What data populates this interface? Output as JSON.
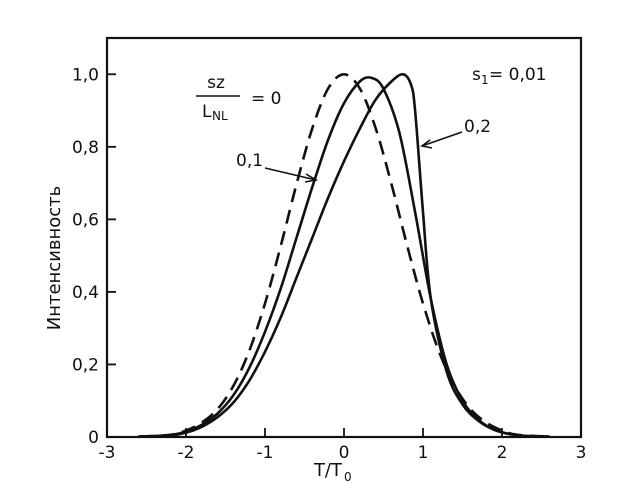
{
  "chart_data": {
    "type": "line",
    "xlabel": "T/T",
    "xlabel_sub": "0",
    "ylabel": "Интенсивность",
    "xlim": [
      -3,
      3
    ],
    "ylim": [
      0,
      1.1
    ],
    "xticks": [
      -3,
      -2,
      -1,
      0,
      1,
      2,
      3
    ],
    "xtick_labels": [
      "-3",
      "-2",
      "-1",
      "0",
      "1",
      "2",
      "3"
    ],
    "yticks": [
      0,
      0.2,
      0.4,
      0.6,
      0.8,
      1.0
    ],
    "ytick_labels": [
      "0",
      "0,2",
      "0,4",
      "0,6",
      "0,8",
      "1,0"
    ],
    "grid": false,
    "series": [
      {
        "name": "0",
        "style": "dashed",
        "x": [
          -2.6,
          -2.2,
          -2.0,
          -1.8,
          -1.6,
          -1.4,
          -1.2,
          -1.0,
          -0.8,
          -0.6,
          -0.4,
          -0.2,
          0.0,
          0.2,
          0.4,
          0.6,
          0.8,
          1.0,
          1.2,
          1.4,
          1.6,
          1.8,
          2.0,
          2.2,
          2.6
        ],
        "y": [
          0.001,
          0.006,
          0.018,
          0.04,
          0.077,
          0.141,
          0.237,
          0.368,
          0.527,
          0.698,
          0.852,
          0.961,
          1.0,
          0.961,
          0.852,
          0.698,
          0.527,
          0.368,
          0.237,
          0.141,
          0.077,
          0.04,
          0.018,
          0.006,
          0.001
        ]
      },
      {
        "name": "0,1",
        "style": "solid",
        "x": [
          -2.6,
          -2.2,
          -2.0,
          -1.8,
          -1.6,
          -1.4,
          -1.2,
          -1.0,
          -0.8,
          -0.6,
          -0.4,
          -0.2,
          0.0,
          0.2,
          0.35,
          0.5,
          0.7,
          0.9,
          1.1,
          1.3,
          1.5,
          1.7,
          1.9,
          2.1,
          2.3,
          2.6
        ],
        "y": [
          0.001,
          0.005,
          0.015,
          0.034,
          0.065,
          0.115,
          0.19,
          0.29,
          0.41,
          0.55,
          0.69,
          0.82,
          0.92,
          0.98,
          0.99,
          0.96,
          0.84,
          0.62,
          0.38,
          0.2,
          0.1,
          0.048,
          0.02,
          0.008,
          0.003,
          0.001
        ]
      },
      {
        "name": "0,2",
        "style": "solid",
        "x": [
          -2.6,
          -2.2,
          -2.0,
          -1.8,
          -1.6,
          -1.4,
          -1.2,
          -1.0,
          -0.8,
          -0.6,
          -0.4,
          -0.2,
          0.0,
          0.2,
          0.4,
          0.6,
          0.75,
          0.85,
          0.9,
          1.0,
          1.1,
          1.3,
          1.5,
          1.7,
          1.9,
          2.1,
          2.3,
          2.6
        ],
        "y": [
          0.001,
          0.004,
          0.012,
          0.028,
          0.055,
          0.095,
          0.155,
          0.235,
          0.33,
          0.44,
          0.55,
          0.66,
          0.76,
          0.85,
          0.93,
          0.98,
          1.0,
          0.97,
          0.9,
          0.62,
          0.38,
          0.18,
          0.09,
          0.045,
          0.02,
          0.008,
          0.003,
          0.001
        ]
      }
    ],
    "annotations": {
      "param_numerator": "sz",
      "param_denominator": "L",
      "param_denominator_sub": "NL",
      "param_equals": "= 0",
      "label_01": "0,1",
      "label_02": "0,2",
      "corner_s": "s",
      "corner_sub": "1",
      "corner_value": "= 0,01"
    }
  }
}
